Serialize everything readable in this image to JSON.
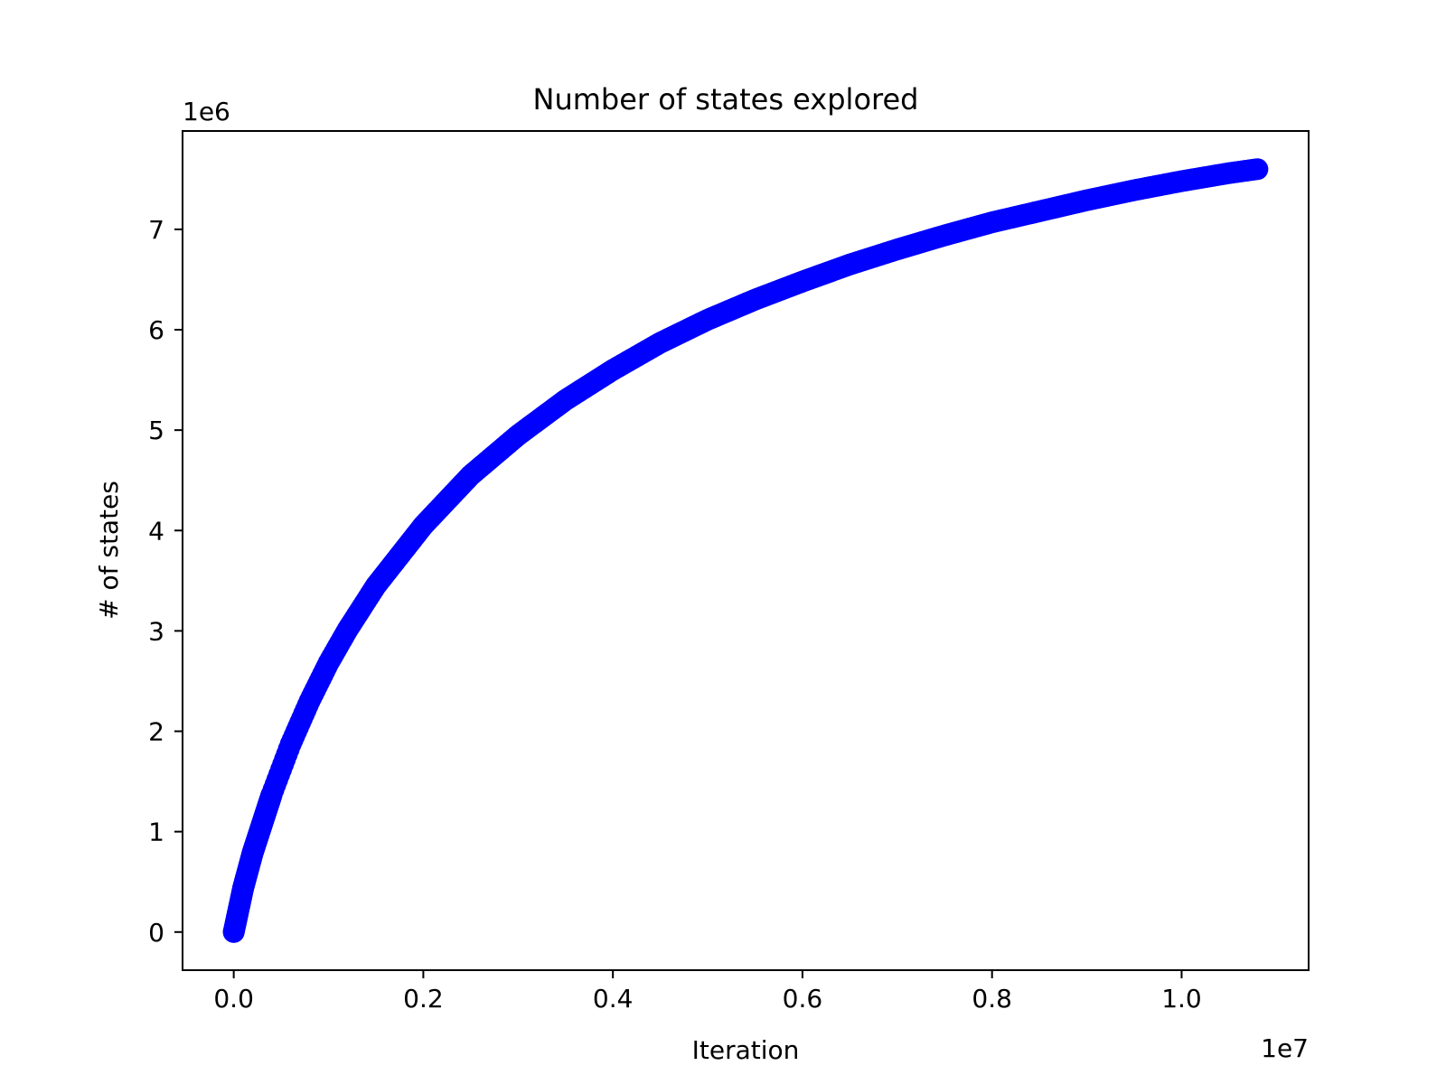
{
  "chart_data": {
    "type": "scatter",
    "title": "Number of states explored",
    "xlabel": "Iteration",
    "ylabel": "# of states",
    "x_offset_label": "1e7",
    "y_offset_label": "1e6",
    "xlim": [
      -540000,
      11340000
    ],
    "ylim": [
      -380000,
      7980000
    ],
    "xticks": [
      0,
      2000000,
      4000000,
      6000000,
      8000000,
      10000000
    ],
    "xtick_labels": [
      "0.0",
      "0.2",
      "0.4",
      "0.6",
      "0.8",
      "1.0"
    ],
    "yticks": [
      0,
      1000000,
      2000000,
      3000000,
      4000000,
      5000000,
      6000000,
      7000000
    ],
    "ytick_labels": [
      "0",
      "1",
      "2",
      "3",
      "4",
      "5",
      "6",
      "7"
    ],
    "grid": false,
    "legend": "none",
    "marker_color": "#0000ff",
    "series": [
      {
        "x": [
          0,
          100000,
          200000,
          400000,
          600000,
          800000,
          1000000,
          1200000,
          1500000,
          2000000,
          2500000,
          3000000,
          3500000,
          4000000,
          4500000,
          5000000,
          5500000,
          6000000,
          6500000,
          7000000,
          7500000,
          8000000,
          8500000,
          9000000,
          9500000,
          10000000,
          10500000,
          10800000
        ],
        "values": [
          0,
          440000,
          790000,
          1370000,
          1870000,
          2300000,
          2680000,
          3010000,
          3450000,
          4050000,
          4550000,
          4950000,
          5300000,
          5600000,
          5870000,
          6100000,
          6300000,
          6480000,
          6650000,
          6800000,
          6940000,
          7070000,
          7180000,
          7290000,
          7390000,
          7480000,
          7560000,
          7600000
        ]
      }
    ]
  }
}
